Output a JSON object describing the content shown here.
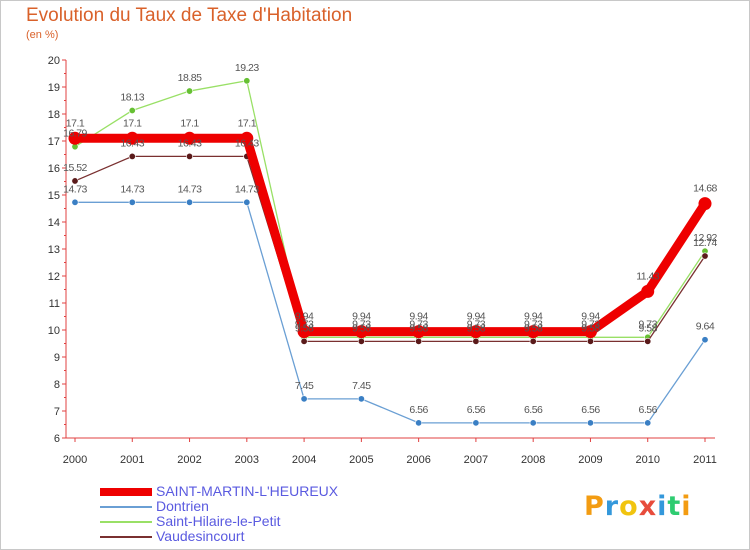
{
  "title": "Evolution du Taux de Taxe d'Habitation",
  "unit_label": "(en %)",
  "chart_data": {
    "type": "line",
    "title": "Evolution du Taux de Taxe d'Habitation",
    "ylabel": "(en %)",
    "xlabel": "",
    "x": [
      "2000",
      "2001",
      "2002",
      "2003",
      "2004",
      "2005",
      "2006",
      "2007",
      "2008",
      "2009",
      "2010",
      "2011"
    ],
    "ylim": [
      6,
      20
    ],
    "yticks": [
      "6",
      "7",
      "8",
      "9",
      "10",
      "11",
      "12",
      "13",
      "14",
      "15",
      "16",
      "17",
      "18",
      "19",
      "20"
    ],
    "grid": false,
    "legend_position": "bottom-left",
    "series": [
      {
        "name": "SAINT-MARTIN-L'HEUREUX",
        "color": "#ee0000",
        "emphasis": true,
        "values": [
          17.1,
          17.1,
          17.1,
          17.1,
          9.94,
          9.94,
          9.94,
          9.94,
          9.94,
          9.94,
          11.43,
          14.68
        ],
        "labels": [
          "17.1",
          "17.1",
          "17.1",
          "17.1",
          "9.94",
          "9.94",
          "9.94",
          "9.94",
          "9.94",
          "9.94",
          "11.43",
          "14.68"
        ]
      },
      {
        "name": "Dontrien",
        "color": "#6a9fd4",
        "marker": "#3a7fc4",
        "values": [
          14.73,
          14.73,
          14.73,
          14.73,
          7.45,
          7.45,
          6.56,
          6.56,
          6.56,
          6.56,
          6.56,
          9.64
        ],
        "labels": [
          "14.73",
          "14.73",
          "14.73",
          "14.73",
          "7.45",
          "7.45",
          "6.56",
          "6.56",
          "6.56",
          "6.56",
          "6.56",
          "9.64"
        ]
      },
      {
        "name": "Saint-Hilaire-le-Petit",
        "color": "#99e066",
        "marker": "#66c033",
        "values": [
          16.79,
          18.13,
          18.85,
          19.23,
          9.73,
          9.73,
          9.73,
          9.73,
          9.73,
          9.73,
          9.73,
          12.92
        ],
        "labels": [
          "16.79",
          "18.13",
          "18.85",
          "19.23",
          "9.73",
          "9.73",
          "9.73",
          "9.73",
          "9.73",
          "9.73",
          "9.73",
          "12.92"
        ]
      },
      {
        "name": "Vaudesincourt",
        "color": "#7a3030",
        "marker": "#5a1a1a",
        "values": [
          15.52,
          16.43,
          16.43,
          16.43,
          9.58,
          9.58,
          9.58,
          9.58,
          9.58,
          9.58,
          9.58,
          12.74
        ],
        "labels": [
          "15.52",
          "16.43",
          "16.43",
          "16.43",
          "9.58",
          "9.58",
          "9.58",
          "9.58",
          "9.58",
          "9.58",
          "9.58",
          "12.74"
        ]
      }
    ]
  },
  "logo": {
    "letters": [
      "P",
      "r",
      "o",
      "x",
      "i",
      "t",
      "i"
    ],
    "colors": [
      "#f39c12",
      "#3498db",
      "#f1c40f",
      "#e74c3c",
      "#3498db",
      "#2ecc71",
      "#f39c12"
    ]
  }
}
